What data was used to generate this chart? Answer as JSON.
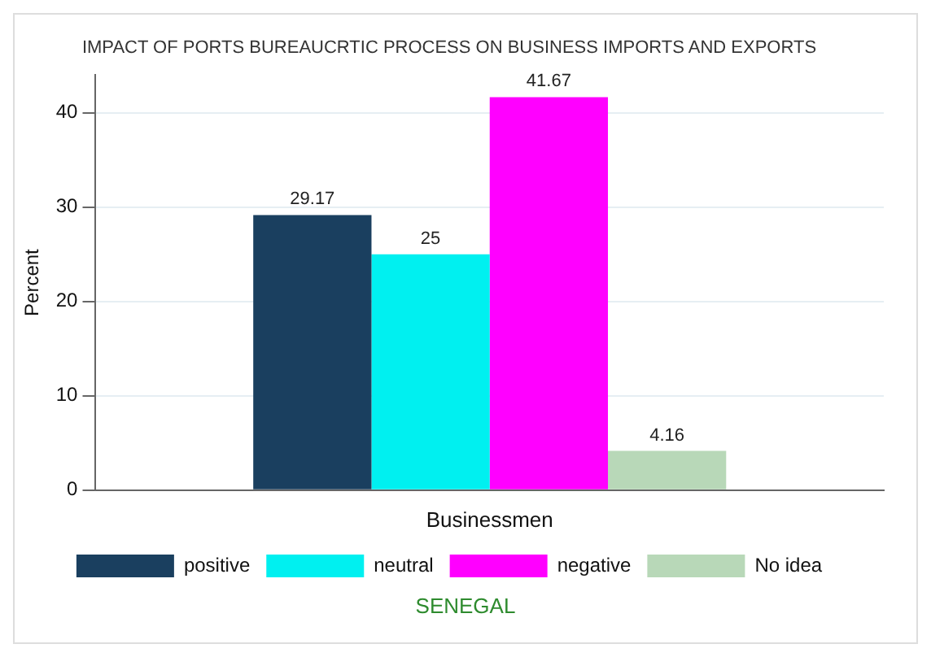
{
  "chart_data": {
    "type": "bar",
    "title": "IMPACT OF PORTS BUREAUCRTIC PROCESS ON BUSINESS IMPORTS AND EXPORTS",
    "ylabel": "Percent",
    "categories": [
      "Businessmen"
    ],
    "series": [
      {
        "name": "positive",
        "color": "#1a3f5f",
        "values": [
          29.17
        ]
      },
      {
        "name": "neutral",
        "color": "#00f0f0",
        "values": [
          25
        ]
      },
      {
        "name": "negative",
        "color": "#ff00ff",
        "values": [
          41.67
        ]
      },
      {
        "name": "No idea",
        "color": "#b8d8b8",
        "values": [
          4.16
        ]
      }
    ],
    "ylim": [
      0,
      44
    ],
    "yticks": [
      0,
      10,
      20,
      30,
      40
    ],
    "grid": "y",
    "legend": "bottom",
    "data_labels": true,
    "annotations": [
      "SENEGAL"
    ]
  }
}
